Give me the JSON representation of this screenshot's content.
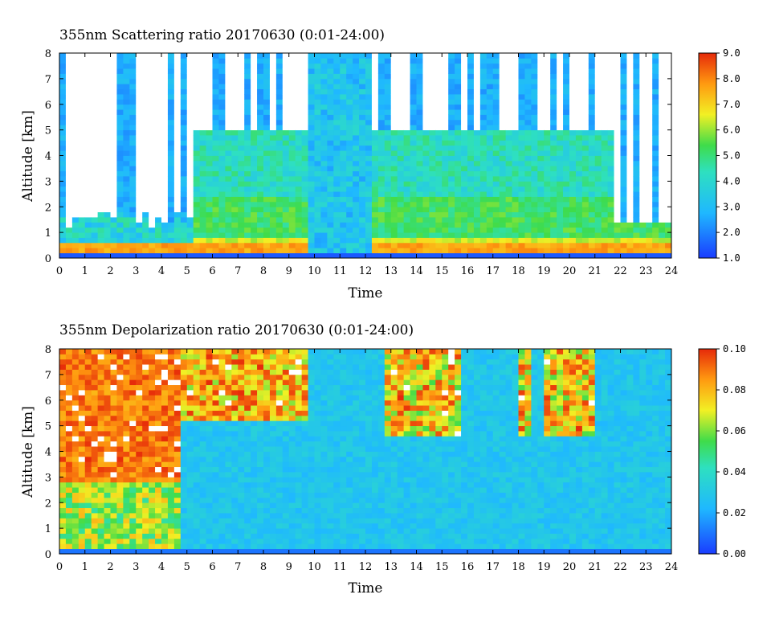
{
  "chart_data": [
    {
      "type": "heatmap",
      "title": "355nm Scattering ratio  20170630 (0:01-24:00)",
      "xlabel": "Time",
      "ylabel": "Altitude [km]",
      "xlim": [
        0,
        24
      ],
      "ylim": [
        0,
        8
      ],
      "x_ticks": [
        "0",
        "1",
        "2",
        "3",
        "4",
        "5",
        "6",
        "7",
        "8",
        "9",
        "10",
        "11",
        "12",
        "13",
        "14",
        "15",
        "16",
        "17",
        "18",
        "19",
        "20",
        "21",
        "22",
        "23",
        "24"
      ],
      "y_ticks": [
        "0",
        "1",
        "2",
        "3",
        "4",
        "5",
        "6",
        "7",
        "8"
      ],
      "colorbar": {
        "range": [
          1.0,
          9.0
        ],
        "tick_labels": [
          "9.0",
          "8.0",
          "7.0",
          "6.0",
          "5.0",
          "4.0",
          "3.0",
          "2.0",
          "1.0"
        ]
      },
      "colors": {
        "low": "#1a3cff",
        "mid": "#33e07a",
        "high": "#e62a0a",
        "no_data": "#ffffff"
      }
    },
    {
      "type": "heatmap",
      "title": "355nm Depolarization ratio  20170630 (0:01-24:00)",
      "xlabel": "Time",
      "ylabel": "Altitude [km]",
      "xlim": [
        0,
        24
      ],
      "ylim": [
        0,
        8
      ],
      "x_ticks": [
        "0",
        "1",
        "2",
        "3",
        "4",
        "5",
        "6",
        "7",
        "8",
        "9",
        "10",
        "11",
        "12",
        "13",
        "14",
        "15",
        "16",
        "17",
        "18",
        "19",
        "20",
        "21",
        "22",
        "23",
        "24"
      ],
      "y_ticks": [
        "0",
        "1",
        "2",
        "3",
        "4",
        "5",
        "6",
        "7",
        "8"
      ],
      "colorbar": {
        "range": [
          0.0,
          0.1
        ],
        "tick_labels": [
          "0.10",
          "0.08",
          "0.06",
          "0.04",
          "0.02",
          "0.00"
        ]
      },
      "colors": {
        "low": "#1a3cff",
        "mid": "#33e07a",
        "high": "#e62a0a",
        "no_data": "#ffffff"
      }
    }
  ]
}
